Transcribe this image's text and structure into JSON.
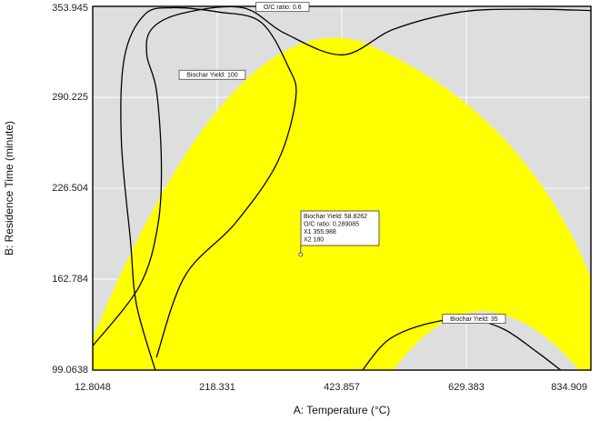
{
  "chart_data": {
    "type": "contour",
    "xlabel": "A: Temperature (°C)",
    "ylabel": "B: Residence Time (minute)",
    "xlim": [
      12.8048,
      834.909
    ],
    "ylim": [
      99.0638,
      353.945
    ],
    "x_ticks": [
      "12.8048",
      "218.331",
      "423.857",
      "629.383",
      "834.909"
    ],
    "y_ticks": [
      "99.0638",
      "162.784",
      "226.504",
      "290.225",
      "353.945"
    ],
    "grid": true,
    "colors": {
      "background": "#dedede",
      "feasible_region": "#ffff00",
      "contour_line": "#000000",
      "grid": "#ffffff"
    },
    "contours": [
      {
        "label": "O/C ratio: 0.6",
        "points": [
          [
            12.8,
            116
          ],
          [
            90,
            158
          ],
          [
            120,
            200
          ],
          [
            126,
            245
          ],
          [
            118,
            295
          ],
          [
            102,
            320
          ],
          [
            110,
            338
          ],
          [
            160,
            349
          ],
          [
            260,
            353
          ],
          [
            330,
            335
          ],
          [
            425,
            320
          ],
          [
            510,
            338
          ],
          [
            620,
            350
          ],
          [
            730,
            352
          ],
          [
            834.9,
            351
          ]
        ]
      },
      {
        "label": "Biochar Yield: 100",
        "points": [
          [
            116,
            99.06
          ],
          [
            85,
            145
          ],
          [
            75,
            190
          ],
          [
            60,
            260
          ],
          [
            65,
            318
          ],
          [
            98,
            348
          ],
          [
            145,
            353
          ],
          [
            220,
            350
          ],
          [
            290,
            343
          ],
          [
            335,
            312
          ],
          [
            348,
            290
          ],
          [
            318,
            245
          ],
          [
            248,
            202
          ],
          [
            165,
            165
          ],
          [
            118,
            108
          ]
        ]
      },
      {
        "label": "Biochar Yield: 35",
        "points": [
          [
            458,
            99.06
          ],
          [
            500,
            120
          ],
          [
            560,
            131
          ],
          [
            629.4,
            135
          ],
          [
            690,
            128
          ],
          [
            745,
            112
          ],
          [
            785,
            99.06
          ]
        ]
      }
    ],
    "annotations": [
      {
        "text": "O/C ratio: 0.6",
        "x": 326,
        "y": 353.5
      },
      {
        "text": "Biochar Yield: 100",
        "x": 210,
        "y": 306
      },
      {
        "text": "Biochar Yield: 35",
        "x": 642,
        "y": 135
      }
    ],
    "flag": {
      "x": 355.988,
      "y": 180,
      "lines": [
        "Biochar Yield: 58.8262",
        "O/C ratio: 0.289085",
        "X1 355.988",
        "X2 180"
      ]
    }
  }
}
